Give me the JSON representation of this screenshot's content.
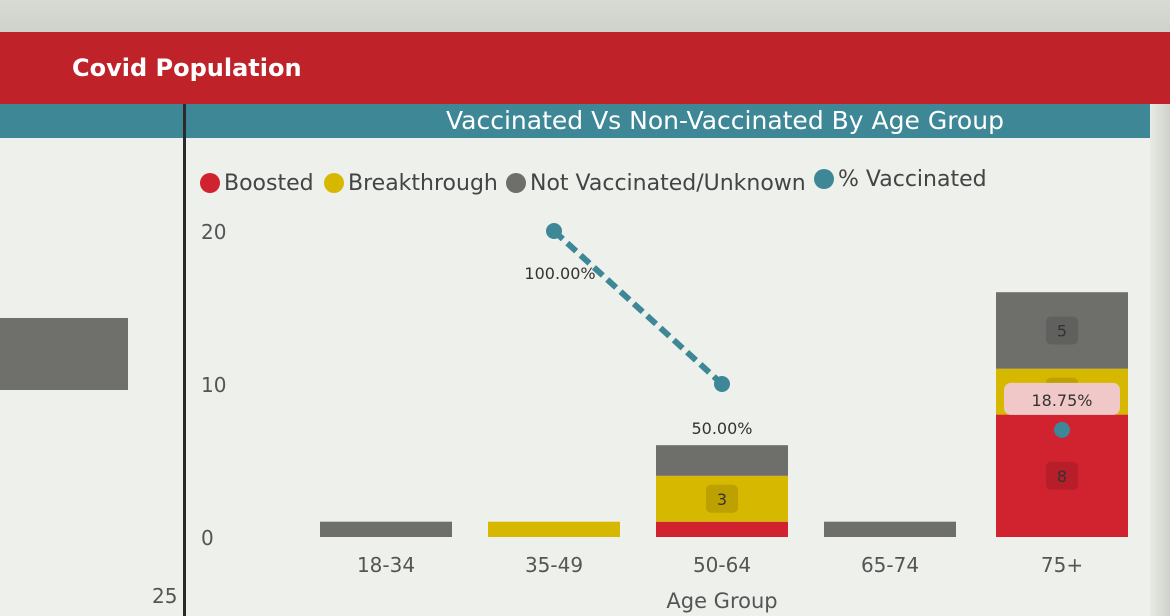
{
  "header": {
    "title": "Covid Population"
  },
  "left_panel": {
    "axis_value": "25"
  },
  "chart_data": {
    "type": "bar",
    "title": "Vaccinated Vs Non-Vaccinated By Age Group",
    "xlabel": "Age Group",
    "ylabel": "",
    "ylim": [
      0,
      20
    ],
    "y_ticks": [
      "0",
      "10",
      "20"
    ],
    "y_tick_values": [
      0,
      10,
      20
    ],
    "categories": [
      "18-34",
      "35-49",
      "50-64",
      "65-74",
      "75+"
    ],
    "series": [
      {
        "name": "Boosted",
        "color": "#d1232f",
        "values": [
          0,
          0,
          1,
          0,
          8
        ]
      },
      {
        "name": "Breakthrough",
        "color": "#d7b800",
        "values": [
          0,
          1,
          3,
          0,
          3
        ]
      },
      {
        "name": "Not Vaccinated/Unknown",
        "color": "#6e6e6b",
        "values": [
          1,
          0,
          2,
          1,
          5
        ]
      }
    ],
    "segment_labels": [
      [
        null,
        null,
        null,
        null,
        "8"
      ],
      [
        null,
        null,
        "3",
        null,
        "3"
      ],
      [
        null,
        null,
        null,
        null,
        "5"
      ]
    ],
    "line_series": {
      "name": "% Vaccinated",
      "color": "#3d8796",
      "style": "dashed",
      "points": [
        {
          "category": "35-49",
          "value": 20,
          "label": "100.00%"
        },
        {
          "category": "50-64",
          "value": 10,
          "label": "50.00%"
        },
        {
          "category": "75+",
          "value": 7,
          "label": "18.75%"
        }
      ]
    },
    "legend": [
      "Boosted",
      "Breakthrough",
      "Not Vaccinated/Unknown",
      "% Vaccinated"
    ],
    "legend_position": "top-left",
    "grid": false
  }
}
